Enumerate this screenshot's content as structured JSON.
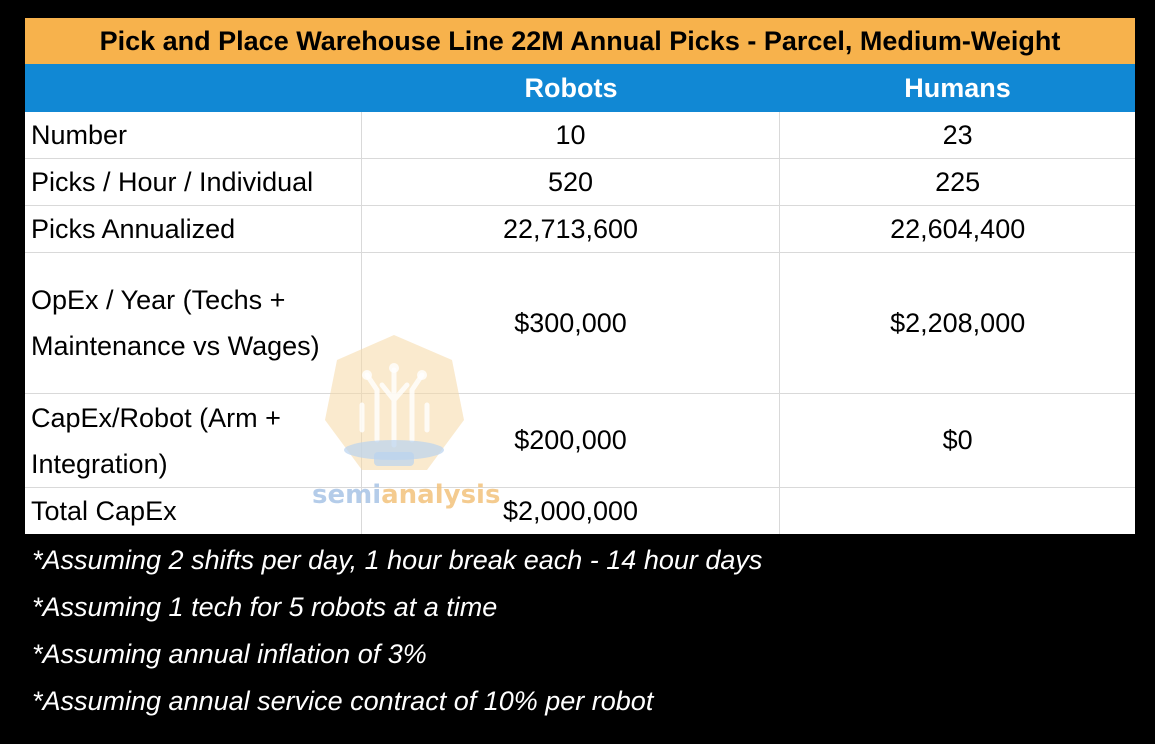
{
  "table": {
    "title": "Pick and Place Warehouse Line 22M Annual Picks - Parcel, Medium-Weight",
    "columns": [
      "",
      "Robots",
      "Humans"
    ],
    "rows": [
      {
        "label": "Number",
        "robots": "10",
        "humans": "23"
      },
      {
        "label": "Picks / Hour / Individual",
        "robots": "520",
        "humans": "225"
      },
      {
        "label": "Picks Annualized",
        "robots": "22,713,600",
        "humans": "22,604,400"
      },
      {
        "label": "OpEx / Year (Techs + Maintenance vs Wages)",
        "robots": "$300,000",
        "humans": "$2,208,000"
      },
      {
        "label": "CapEx/Robot (Arm + Integration)",
        "robots": "$200,000",
        "humans": "$0"
      },
      {
        "label": "Total CapEx",
        "robots": "$2,000,000",
        "humans": ""
      }
    ]
  },
  "notes": [
    "*Assuming 2 shifts per day, 1 hour break each - 14 hour days",
    "*Assuming 1 tech for 5 robots at a time",
    "*Assuming annual inflation of 3%",
    "*Assuming annual service contract of 10% per robot"
  ],
  "watermark": {
    "part1": "semi",
    "part2": "analysis"
  },
  "colors": {
    "title_bg": "#f7b24c",
    "header_bg": "#1188d4",
    "page_bg": "#000000"
  }
}
